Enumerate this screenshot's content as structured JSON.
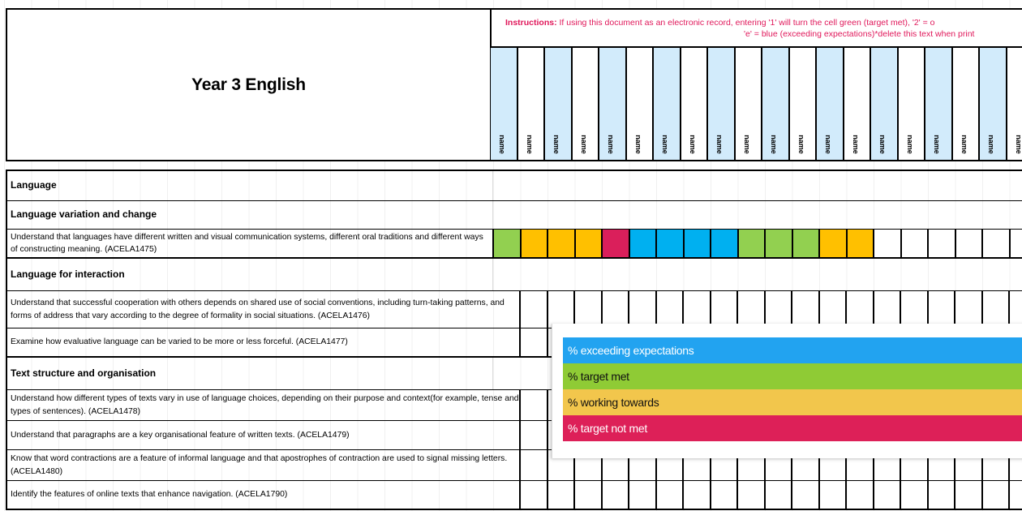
{
  "document": {
    "title": "Year 3 English",
    "instructions": {
      "label": "Instructions:",
      "line1": "If using this document as an electronic record, entering '1' will turn the cell green (target met), '2' = o",
      "line2": "'e' = blue (exceeding expectations)*delete this text when print"
    },
    "student_columns": [
      {
        "label": "name"
      },
      {
        "label": "name"
      },
      {
        "label": "name"
      },
      {
        "label": "name"
      },
      {
        "label": "name"
      },
      {
        "label": "name"
      },
      {
        "label": "name"
      },
      {
        "label": "name"
      },
      {
        "label": "name"
      },
      {
        "label": "name"
      },
      {
        "label": "name"
      },
      {
        "label": "name"
      },
      {
        "label": "name"
      },
      {
        "label": "name"
      },
      {
        "label": "name"
      },
      {
        "label": "name"
      },
      {
        "label": "name"
      },
      {
        "label": "name"
      },
      {
        "label": "name"
      },
      {
        "label": "name"
      }
    ]
  },
  "rows": [
    {
      "type": "heading",
      "text": "Language"
    },
    {
      "type": "heading",
      "text": "Language variation and change"
    },
    {
      "type": "item",
      "text": "Understand that languages have different written and visual communication systems, different oral traditions and different ways of constructing meaning.  (ACELA1475)",
      "marks": [
        "green",
        "amber",
        "amber",
        "amber",
        "red",
        "blue",
        "blue",
        "blue",
        "blue",
        "green",
        "green",
        "green",
        "amber",
        "amber",
        "",
        "",
        "",
        "",
        "",
        ""
      ]
    },
    {
      "type": "heading",
      "text": "Language for interaction"
    },
    {
      "type": "item",
      "text": "Understand that successful cooperation with others depends on shared use of social conventions, including turn-taking patterns, and forms of address that vary according to the degree of formality in social situations. (ACELA1476)"
    },
    {
      "type": "item",
      "text": "Examine how evaluative language can be varied to be more or less forceful. (ACELA1477)"
    },
    {
      "type": "heading",
      "text": "Text structure and organisation"
    },
    {
      "type": "item",
      "text": "Understand how different types of texts vary in use of language choices, depending on their purpose and context(for example, tense and types of sentences). (ACELA1478)"
    },
    {
      "type": "item",
      "text": "Understand that paragraphs are a key organisational feature of written texts. (ACELA1479)"
    },
    {
      "type": "item",
      "text": "Know that word contractions are a feature of informal language and that apostrophes of contraction are used to signal missing letters. (ACELA1480)"
    },
    {
      "type": "item",
      "text": "Identify the features of online texts that enhance navigation. (ACELA1790)"
    }
  ],
  "legend": {
    "items": [
      {
        "label": "% exceeding expectations",
        "color": "#22a3f0",
        "text_color": "#ffffff"
      },
      {
        "label": "% target met",
        "color": "#8fcb35",
        "text_color": "#111111"
      },
      {
        "label": "% working towards",
        "color": "#f2c64c",
        "text_color": "#111111"
      },
      {
        "label": "% target not met",
        "color": "#dd2058",
        "text_color": "#ffffff"
      }
    ]
  },
  "colors": {
    "green": "#92d050",
    "amber": "#ffc000",
    "red": "#da1f5b",
    "blue": "#00b0f0",
    "name_header_blue": "#d2ebfb",
    "instructions_text": "#e0175a"
  }
}
